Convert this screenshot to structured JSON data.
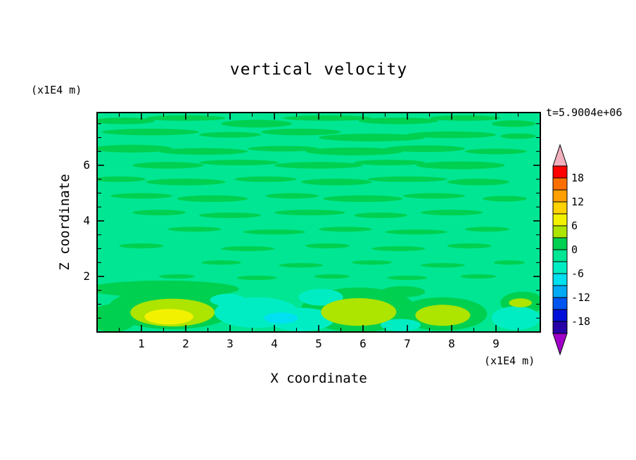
{
  "title": "vertical velocity",
  "time_label": "t=5.9004e+06",
  "axes": {
    "x_label": "X coordinate",
    "z_label": "Z coordinate",
    "x_units": "(x1E4 m)",
    "z_units": "(x1E4 m)"
  },
  "colorbar": {
    "labels": [
      "18",
      "12",
      "6",
      "0",
      "-6",
      "-12",
      "-18"
    ],
    "top_arrow_color": "#F2AFBE",
    "bottom_arrow_color": "#A000C8",
    "segment_colors": [
      "#FF0000",
      "#FF6E00",
      "#FFA000",
      "#FFD200",
      "#F2F200",
      "#ADE400",
      "#00D050",
      "#00E693",
      "#00EDC4",
      "#00E0F0",
      "#00AAF5",
      "#0055F0",
      "#0010D8",
      "#2800A8"
    ]
  },
  "chart_data": {
    "type": "heatmap",
    "subtype": "filled-contour",
    "title": "vertical velocity",
    "xlabel": "X coordinate (x1E4 m)",
    "ylabel": "Z coordinate (x1E4 m)",
    "annotation": "t=5.9004e+06",
    "x_range": [
      0,
      10
    ],
    "z_range": [
      0,
      7.9
    ],
    "x_ticks": [
      1,
      2,
      3,
      4,
      5,
      6,
      7,
      8,
      9
    ],
    "z_ticks": [
      2,
      4,
      6
    ],
    "contour_interval": 3,
    "colorbar_level_labels": [
      18,
      12,
      6,
      0,
      -6,
      -12,
      -18
    ],
    "legend_position": "right",
    "grid": false,
    "palette": {
      "background_level": "#00E693",
      "green": "#00D050",
      "yellow_green": "#ADE400",
      "yellow": "#F2F200",
      "aqua": "#00EDC4",
      "cyan": "#00E0F0"
    },
    "field_blobs": [
      [
        0.6,
        7.6,
        0.7,
        0.12,
        "g"
      ],
      [
        2.0,
        7.7,
        0.9,
        0.1,
        "g"
      ],
      [
        3.6,
        7.5,
        0.8,
        0.14,
        "g"
      ],
      [
        5.2,
        7.7,
        1.0,
        0.1,
        "g"
      ],
      [
        6.8,
        7.6,
        0.9,
        0.12,
        "g"
      ],
      [
        8.3,
        7.7,
        0.8,
        0.1,
        "g"
      ],
      [
        9.4,
        7.5,
        0.5,
        0.12,
        "g"
      ],
      [
        1.2,
        7.2,
        1.1,
        0.12,
        "g"
      ],
      [
        3.0,
        7.1,
        0.7,
        0.1,
        "g"
      ],
      [
        4.6,
        7.2,
        0.9,
        0.12,
        "g"
      ],
      [
        6.2,
        7.0,
        1.2,
        0.14,
        "g"
      ],
      [
        8.0,
        7.1,
        1.0,
        0.12,
        "g"
      ],
      [
        9.5,
        7.05,
        0.4,
        0.1,
        "g"
      ],
      [
        0.8,
        6.6,
        0.9,
        0.14,
        "g"
      ],
      [
        2.4,
        6.5,
        1.0,
        0.12,
        "g"
      ],
      [
        4.2,
        6.6,
        0.8,
        0.1,
        "g"
      ],
      [
        5.8,
        6.5,
        1.1,
        0.14,
        "g"
      ],
      [
        7.4,
        6.6,
        0.9,
        0.12,
        "g"
      ],
      [
        9.0,
        6.5,
        0.7,
        0.1,
        "g"
      ],
      [
        1.6,
        6.0,
        0.8,
        0.12,
        "g"
      ],
      [
        3.2,
        6.1,
        0.9,
        0.1,
        "g"
      ],
      [
        5.0,
        6.0,
        1.0,
        0.12,
        "g"
      ],
      [
        6.6,
        6.1,
        0.8,
        0.1,
        "g"
      ],
      [
        8.2,
        6.0,
        1.0,
        0.14,
        "g"
      ],
      [
        0.5,
        5.5,
        0.6,
        0.1,
        "g"
      ],
      [
        2.0,
        5.4,
        0.9,
        0.12,
        "g"
      ],
      [
        3.8,
        5.5,
        0.7,
        0.1,
        "g"
      ],
      [
        5.4,
        5.4,
        0.8,
        0.12,
        "g"
      ],
      [
        7.0,
        5.5,
        0.9,
        0.1,
        "g"
      ],
      [
        8.6,
        5.4,
        0.7,
        0.12,
        "g"
      ],
      [
        1.0,
        4.9,
        0.7,
        0.1,
        "g"
      ],
      [
        2.6,
        4.8,
        0.8,
        0.12,
        "g"
      ],
      [
        4.4,
        4.9,
        0.6,
        0.1,
        "g"
      ],
      [
        6.0,
        4.8,
        0.9,
        0.12,
        "g"
      ],
      [
        7.6,
        4.9,
        0.7,
        0.1,
        "g"
      ],
      [
        9.2,
        4.8,
        0.5,
        0.1,
        "g"
      ],
      [
        1.4,
        4.3,
        0.6,
        0.1,
        "g"
      ],
      [
        3.0,
        4.2,
        0.7,
        0.1,
        "g"
      ],
      [
        4.8,
        4.3,
        0.8,
        0.1,
        "g"
      ],
      [
        6.4,
        4.2,
        0.6,
        0.1,
        "g"
      ],
      [
        8.0,
        4.3,
        0.7,
        0.1,
        "g"
      ],
      [
        2.2,
        3.7,
        0.6,
        0.09,
        "g"
      ],
      [
        4.0,
        3.6,
        0.7,
        0.09,
        "g"
      ],
      [
        5.6,
        3.7,
        0.6,
        0.09,
        "g"
      ],
      [
        7.2,
        3.6,
        0.7,
        0.09,
        "g"
      ],
      [
        8.8,
        3.7,
        0.5,
        0.09,
        "g"
      ],
      [
        1.0,
        3.1,
        0.5,
        0.09,
        "g"
      ],
      [
        3.4,
        3.0,
        0.6,
        0.09,
        "g"
      ],
      [
        5.2,
        3.1,
        0.5,
        0.09,
        "g"
      ],
      [
        6.8,
        3.0,
        0.6,
        0.09,
        "g"
      ],
      [
        8.4,
        3.1,
        0.5,
        0.09,
        "g"
      ],
      [
        2.8,
        2.5,
        0.45,
        0.08,
        "g"
      ],
      [
        4.6,
        2.4,
        0.5,
        0.08,
        "g"
      ],
      [
        6.2,
        2.5,
        0.45,
        0.08,
        "g"
      ],
      [
        7.8,
        2.4,
        0.5,
        0.08,
        "g"
      ],
      [
        9.3,
        2.5,
        0.35,
        0.08,
        "g"
      ],
      [
        1.8,
        2.0,
        0.4,
        0.08,
        "g"
      ],
      [
        3.6,
        1.95,
        0.45,
        0.08,
        "g"
      ],
      [
        5.3,
        2.0,
        0.4,
        0.08,
        "g"
      ],
      [
        7.0,
        1.95,
        0.45,
        0.08,
        "g"
      ],
      [
        8.6,
        2.0,
        0.4,
        0.08,
        "g"
      ],
      [
        1.5,
        1.55,
        1.7,
        0.3,
        "g"
      ],
      [
        1.7,
        0.85,
        1.45,
        0.75,
        "g"
      ],
      [
        5.9,
        0.8,
        1.3,
        0.8,
        "g"
      ],
      [
        7.8,
        0.65,
        1.0,
        0.6,
        "g"
      ],
      [
        0.35,
        0.5,
        0.55,
        0.5,
        "g"
      ],
      [
        9.6,
        1.05,
        0.5,
        0.4,
        "g"
      ],
      [
        6.9,
        1.45,
        0.5,
        0.2,
        "g"
      ],
      [
        3.6,
        0.7,
        0.95,
        0.55,
        "aq"
      ],
      [
        4.6,
        0.45,
        0.75,
        0.42,
        "aq"
      ],
      [
        5.05,
        1.25,
        0.5,
        0.3,
        "aq"
      ],
      [
        9.45,
        0.5,
        0.55,
        0.42,
        "aq"
      ],
      [
        2.95,
        1.15,
        0.4,
        0.22,
        "aq"
      ],
      [
        6.85,
        0.25,
        0.45,
        0.22,
        "aq"
      ],
      [
        4.15,
        0.5,
        0.38,
        0.2,
        "cy"
      ],
      [
        1.7,
        0.7,
        0.95,
        0.5,
        "yg"
      ],
      [
        5.9,
        0.72,
        0.85,
        0.5,
        "yg"
      ],
      [
        7.8,
        0.6,
        0.62,
        0.38,
        "yg"
      ],
      [
        9.55,
        1.05,
        0.26,
        0.16,
        "yg"
      ],
      [
        1.62,
        0.55,
        0.55,
        0.28,
        "y"
      ]
    ]
  }
}
